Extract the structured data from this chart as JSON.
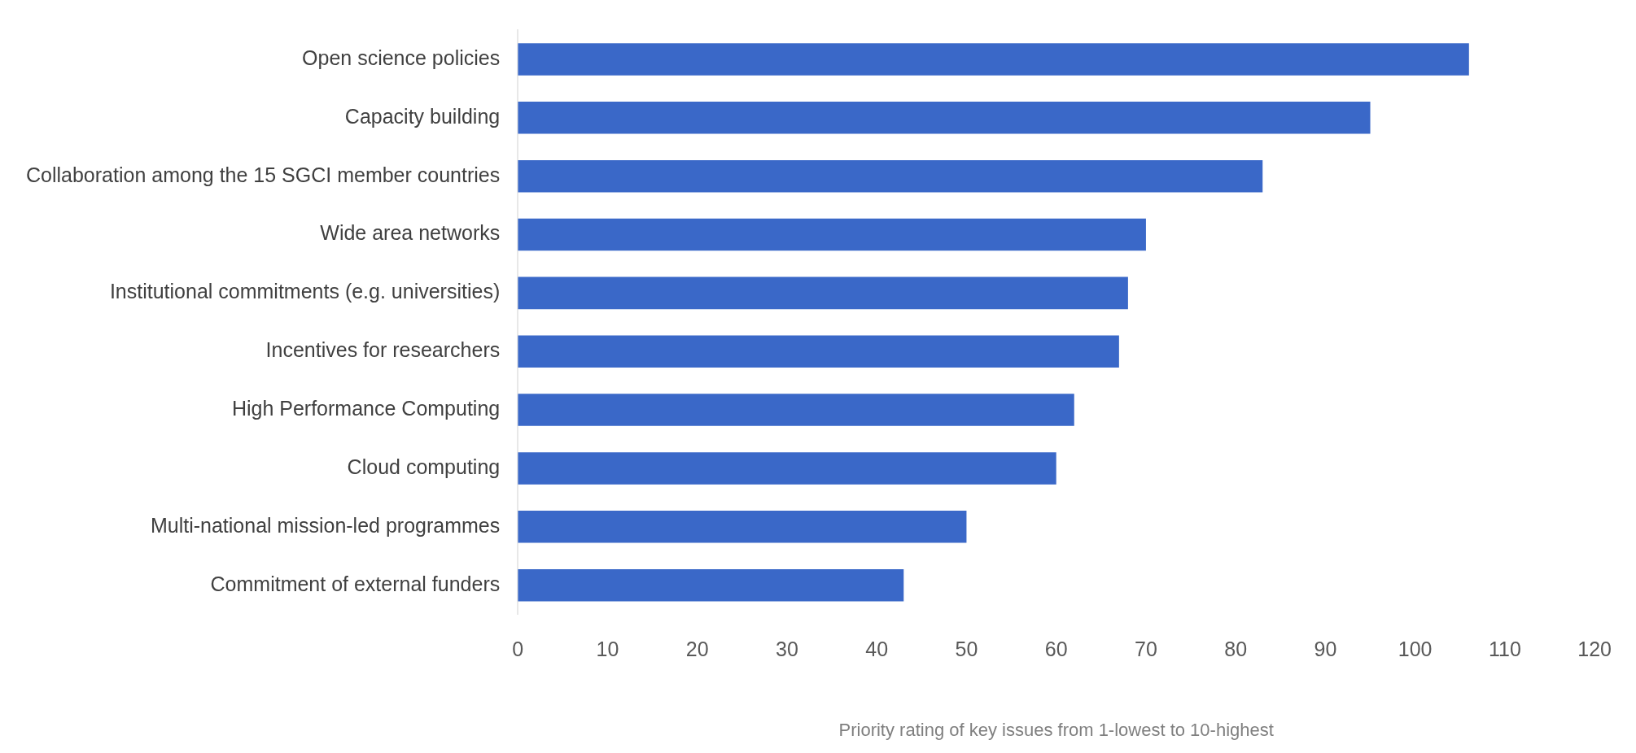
{
  "chart_data": {
    "type": "bar",
    "orientation": "horizontal",
    "xlabel": "Priority rating of key issues from 1-lowest to 10-highest",
    "categories": [
      "Open science policies",
      "Capacity building",
      "Collaboration among the 15 SGCI member countries",
      "Wide area networks",
      "Institutional commitments (e.g. universities)",
      "Incentives for researchers",
      "High Performance Computing",
      "Cloud computing",
      "Multi-national mission-led programmes",
      "Commitment of external funders"
    ],
    "values": [
      106,
      95,
      83,
      70,
      68,
      67,
      62,
      60,
      50,
      43
    ],
    "color": "#3a68c8",
    "xlim": [
      0,
      120
    ],
    "xticks": [
      0,
      10,
      20,
      30,
      40,
      50,
      60,
      70,
      80,
      90,
      100,
      110,
      120
    ],
    "grid": false,
    "legend": false
  }
}
